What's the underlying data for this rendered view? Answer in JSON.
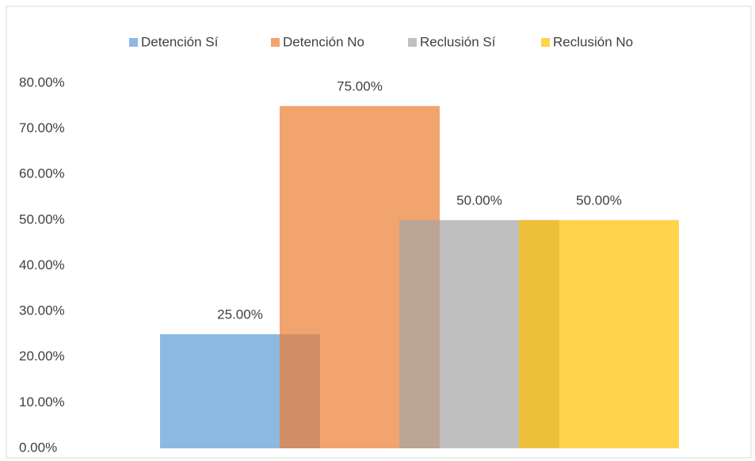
{
  "chart_data": {
    "type": "bar",
    "categories": [
      null
    ],
    "series": [
      {
        "name": "Detención Sí",
        "color": "#5b9bd5",
        "values": [
          25
        ],
        "value_labels": [
          "25.00%"
        ]
      },
      {
        "name": "Detención No",
        "color": "#ed7d31",
        "values": [
          75
        ],
        "value_labels": [
          "75.00%"
        ]
      },
      {
        "name": "Reclusión Sí",
        "color": "#a5a5a5",
        "values": [
          50
        ],
        "value_labels": [
          "50.00%"
        ]
      },
      {
        "name": "Reclusión No",
        "color": "#ffc000",
        "values": [
          50
        ],
        "value_labels": [
          "50.00%"
        ]
      }
    ],
    "ylim": [
      0,
      80
    ],
    "yticks": [
      {
        "value": 0,
        "label": "0.00%"
      },
      {
        "value": 10,
        "label": "10.00%"
      },
      {
        "value": 20,
        "label": "20.00%"
      },
      {
        "value": 30,
        "label": "30.00%"
      },
      {
        "value": 40,
        "label": "40.00%"
      },
      {
        "value": 50,
        "label": "50.00%"
      },
      {
        "value": 60,
        "label": "60.00%"
      },
      {
        "value": 70,
        "label": "70.00%"
      },
      {
        "value": 80,
        "label": "80.00%"
      }
    ],
    "grid": false,
    "legend": "top"
  }
}
